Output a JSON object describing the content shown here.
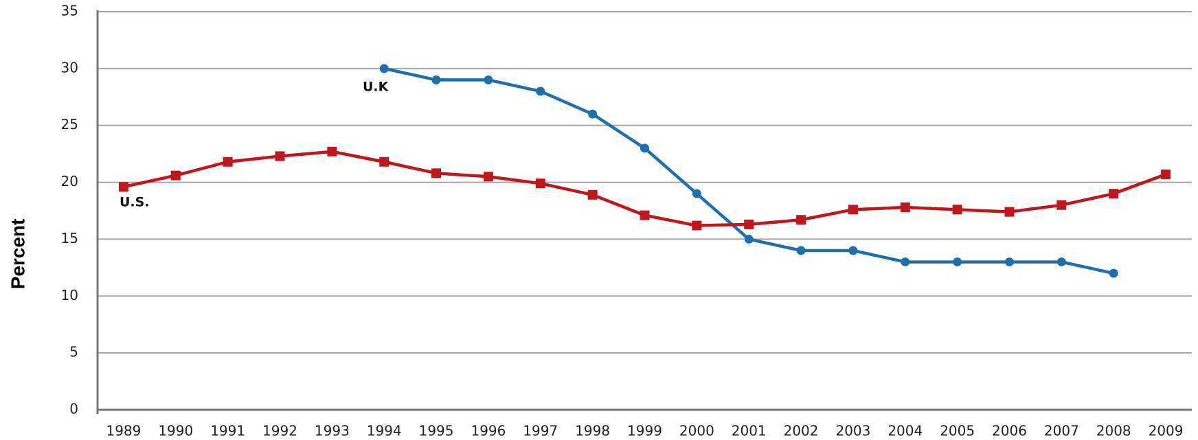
{
  "chart_data": {
    "type": "line",
    "y_label": "Percent",
    "annotations": [
      "U.K",
      "U.S."
    ],
    "categories": [
      "1989",
      "1990",
      "1991",
      "1992",
      "1993",
      "1994",
      "1995",
      "1996",
      "1997",
      "1998",
      "1999",
      "2000",
      "2001",
      "2002",
      "2003",
      "2004",
      "2005",
      "2006",
      "2007",
      "2008",
      "2009"
    ],
    "series": [
      {
        "name": "U.K",
        "color": "#1f6fad",
        "marker": "circle",
        "values": [
          null,
          null,
          null,
          null,
          null,
          30,
          29,
          29,
          28,
          26,
          23,
          19,
          15,
          14,
          14,
          13,
          13,
          13,
          13,
          12,
          null
        ]
      },
      {
        "name": "U.S.",
        "color": "#c0161e",
        "marker": "square",
        "values": [
          19.6,
          20.6,
          21.8,
          22.3,
          22.7,
          21.8,
          20.8,
          20.5,
          19.9,
          18.9,
          17.1,
          16.2,
          16.3,
          16.7,
          17.6,
          17.8,
          17.6,
          17.4,
          18.0,
          19.0,
          20.7
        ]
      }
    ],
    "ylim": [
      0,
      35
    ],
    "yticks": [
      0,
      5,
      10,
      15,
      20,
      25,
      30,
      35
    ],
    "grid": true
  }
}
